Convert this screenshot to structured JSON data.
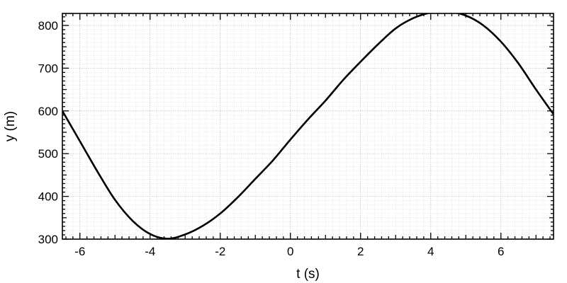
{
  "chart_data": {
    "type": "line",
    "title": "",
    "xlabel": "t (s)",
    "ylabel": "y (m)",
    "xlim": [
      -6.5,
      7.5
    ],
    "ylim": [
      300,
      828
    ],
    "x_ticks": [
      -6,
      -4,
      -2,
      0,
      2,
      4,
      6
    ],
    "x_tick_labels": [
      "-6",
      "-4",
      "-2",
      "0",
      "2",
      "4",
      "6"
    ],
    "y_ticks": [
      300,
      400,
      500,
      600,
      700,
      800
    ],
    "y_tick_labels": [
      "300",
      "400",
      "500",
      "600",
      "700",
      "800"
    ],
    "grid": true,
    "minor_grid": true,
    "legend": false,
    "line_color": "#000000",
    "series": [
      {
        "x": [
          -6.5,
          -6,
          -5.5,
          -5,
          -4.5,
          -4,
          -3.5,
          -3,
          -2.5,
          -2,
          -1.5,
          -1,
          -0.5,
          0,
          0.5,
          1,
          1.5,
          2,
          2.5,
          3,
          3.5,
          4,
          4.5,
          5,
          5.5,
          6,
          6.5,
          7,
          7.5
        ],
        "y": [
          600,
          529,
          458,
          392,
          343,
          312,
          301,
          311,
          331,
          360,
          398,
          441,
          484,
          533,
          580,
          624,
          672,
          715,
          756,
          793,
          817,
          830,
          832,
          823,
          800,
          762,
          711,
          650,
          592
        ]
      }
    ]
  }
}
